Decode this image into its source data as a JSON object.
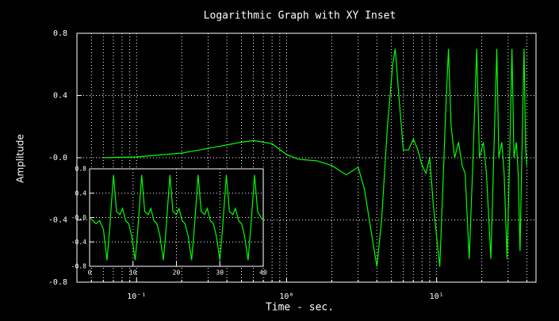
{
  "chart_data": [
    {
      "type": "line",
      "title": "Logarithmic Graph with XY Inset",
      "x_label": "Time - sec.",
      "y_label": "Amplitude",
      "x_scale": "log",
      "xlim": [
        0.04,
        46
      ],
      "xticks": [
        {
          "value": 0.1,
          "label": "10⁻¹"
        },
        {
          "value": 1,
          "label": "10⁰"
        },
        {
          "value": 10,
          "label": "10¹"
        }
      ],
      "xticks_minor": [
        0.05,
        0.06,
        0.07,
        0.08,
        0.09,
        0.2,
        0.3,
        0.4,
        0.5,
        0.6,
        0.7,
        0.8,
        0.9,
        2,
        3,
        4,
        5,
        6,
        7,
        8,
        9,
        20,
        30,
        40
      ],
      "ylim": [
        -0.8,
        0.8
      ],
      "yticks": [
        -0.8,
        -0.4,
        {
          "value": 0,
          "label": "-0.0"
        },
        0.4,
        0.8
      ],
      "grid": true,
      "color": "#00ff00",
      "x": [
        0.06,
        0.1,
        0.2,
        0.3,
        0.5,
        0.6,
        0.8,
        1.0,
        1.2,
        1.6,
        2.0,
        2.5,
        3.0,
        3.3,
        3.7,
        4.0,
        4.3,
        4.7,
        5.1,
        5.3,
        5.6,
        6.0,
        6.5,
        7.0,
        7.5,
        8.0,
        8.5,
        9.0,
        9.5,
        10.5,
        11.0,
        11.5,
        12.0,
        12.5,
        13.2,
        14.0,
        14.8,
        15.5,
        16.5,
        17.5,
        18.5,
        19.3,
        20.5,
        21.5,
        23,
        24.2,
        25.2,
        26,
        27.2,
        28.2,
        29.5,
        30.7,
        31.8,
        32.8,
        34,
        35,
        36,
        37,
        38.3,
        39.2,
        40
      ],
      "values": [
        0,
        0.005,
        0.03,
        0.06,
        0.1,
        0.11,
        0.09,
        0.02,
        -0.01,
        -0.02,
        -0.05,
        -0.11,
        -0.06,
        -0.2,
        -0.5,
        -0.7,
        -0.4,
        0.2,
        0.6,
        0.7,
        0.4,
        0.05,
        0.05,
        0.12,
        0.05,
        -0.05,
        -0.1,
        0,
        -0.3,
        -0.7,
        -0.2,
        0.3,
        0.7,
        0.2,
        0.0,
        0.1,
        -0.05,
        -0.1,
        -0.65,
        0.0,
        0.7,
        0.0,
        0.1,
        -0.1,
        -0.65,
        0.1,
        0.7,
        0.0,
        0.1,
        -0.1,
        -0.65,
        0.0,
        0.7,
        0.0,
        0.1,
        -0.1,
        -0.6,
        0.0,
        0.7,
        0.05,
        -0.05
      ]
    },
    {
      "type": "line",
      "xlim": [
        0,
        40
      ],
      "xticks": [
        0,
        10,
        20,
        30,
        40
      ],
      "ylim": [
        -0.8,
        0.8
      ],
      "yticks": [
        -0.8,
        -0.4,
        {
          "value": 0,
          "label": "-0.0"
        },
        0.4,
        0.8
      ],
      "grid": true,
      "color": "#00ff00",
      "x": [
        0,
        0.7,
        1.5,
        2.3,
        3.2,
        4,
        4.6,
        5.5,
        6.2,
        7,
        7.6,
        8.3,
        9,
        9.7,
        10.5,
        11.1,
        12,
        12.7,
        13.5,
        14.1,
        14.8,
        15.5,
        16.2,
        17,
        17.6,
        18.5,
        19.2,
        20,
        20.6,
        21.3,
        22,
        22.7,
        23.5,
        24.1,
        25,
        25.7,
        26.5,
        27.1,
        27.8,
        28.5,
        29.2,
        30,
        30.6,
        31.5,
        32.2,
        33,
        33.6,
        34.3,
        35,
        35.7,
        36.5,
        37.1,
        38,
        38.7,
        39.5,
        40
      ],
      "values": [
        0,
        -0.05,
        -0.1,
        -0.05,
        -0.2,
        -0.7,
        -0.2,
        0.7,
        0.1,
        0.05,
        0.15,
        -0.05,
        -0.1,
        -0.3,
        -0.7,
        -0.2,
        0.7,
        0.1,
        0.05,
        0.15,
        -0.05,
        -0.1,
        -0.3,
        -0.7,
        -0.2,
        0.7,
        0.1,
        0.05,
        0.15,
        -0.05,
        -0.1,
        -0.3,
        -0.7,
        -0.2,
        0.7,
        0.1,
        0.05,
        0.15,
        -0.05,
        -0.1,
        -0.3,
        -0.7,
        -0.2,
        0.7,
        0.1,
        0.05,
        0.15,
        -0.05,
        -0.1,
        -0.3,
        -0.7,
        -0.2,
        0.7,
        0.1,
        0.0,
        -0.05
      ]
    }
  ]
}
